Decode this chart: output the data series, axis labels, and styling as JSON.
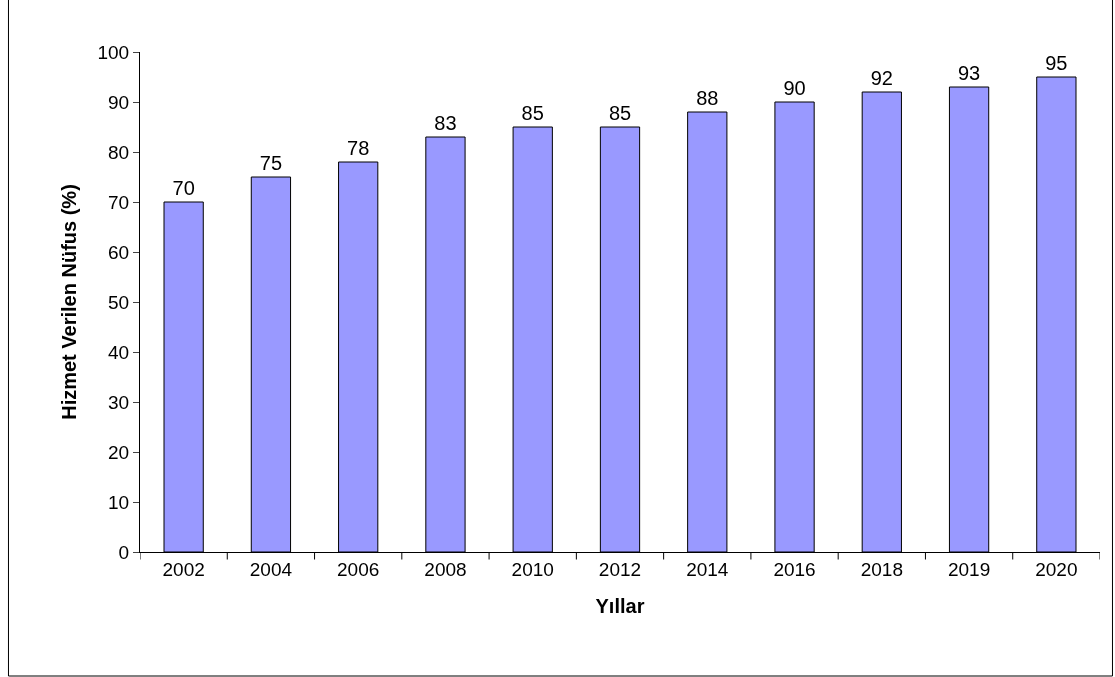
{
  "chart_data": {
    "type": "bar",
    "xlabel": "Yıllar",
    "ylabel": "Hizmet Verilen Nüfus (%)",
    "categories": [
      "2002",
      "2004",
      "2006",
      "2008",
      "2010",
      "2012",
      "2014",
      "2016",
      "2018",
      "2019",
      "2020"
    ],
    "values": [
      70,
      75,
      78,
      83,
      85,
      85,
      88,
      90,
      92,
      93,
      95
    ],
    "color": "#9999ff",
    "ylim": [
      0,
      100
    ],
    "yticks": [
      0,
      10,
      20,
      30,
      40,
      50,
      60,
      70,
      80,
      90,
      100
    ],
    "data_labels": true
  }
}
